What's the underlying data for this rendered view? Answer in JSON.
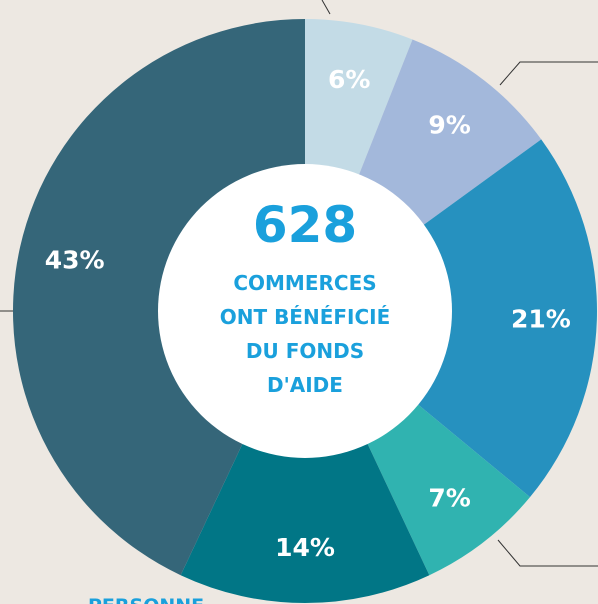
{
  "chart_data": {
    "type": "donut",
    "values": [
      6,
      9,
      21,
      7,
      14,
      43
    ],
    "value_labels": [
      "6%",
      "9%",
      "21%",
      "7%",
      "14%",
      "43%"
    ],
    "colors": [
      "#c3dbe6",
      "#a3b8db",
      "#2691bf",
      "#30b3b0",
      "#017686",
      "#356679"
    ],
    "total": 628,
    "center_label": [
      "COMMERCES",
      "ONT BÉNÉFICIÉ",
      "DU FONDS",
      "D'AIDE"
    ],
    "annotations": [
      "PERSONNE"
    ]
  }
}
